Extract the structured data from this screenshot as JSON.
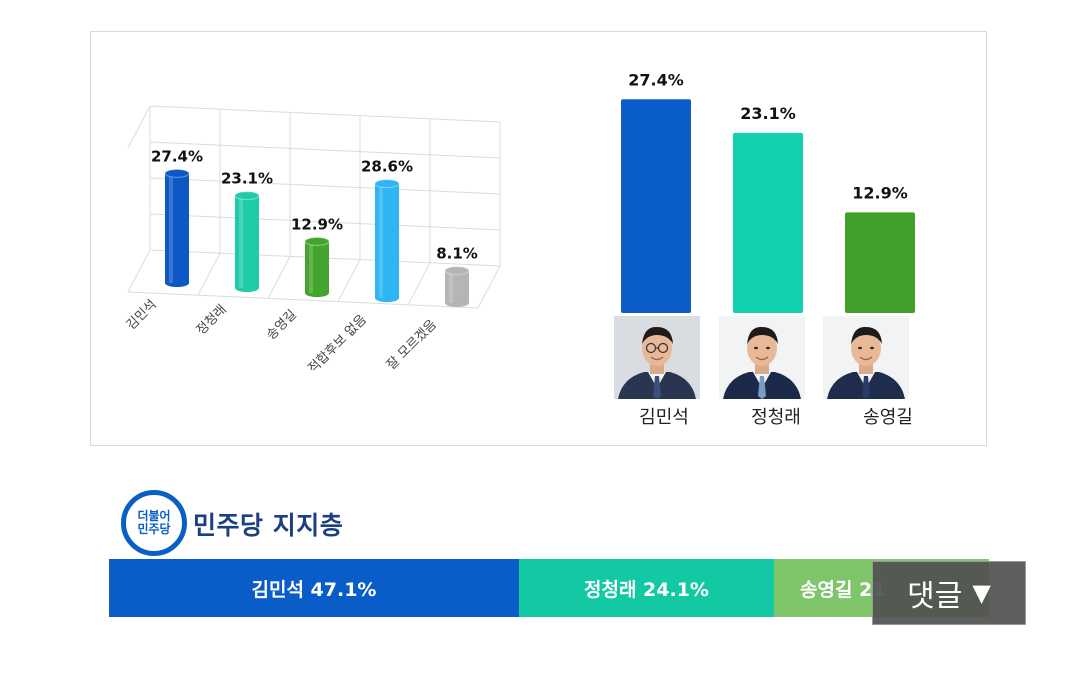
{
  "chart_data": [
    {
      "type": "bar",
      "style": "3d-cylinder",
      "categories": [
        "김민석",
        "정청래",
        "송영길",
        "적합후보 없음",
        "잘 모르겠음"
      ],
      "values": [
        27.4,
        23.1,
        12.9,
        28.6,
        8.1
      ],
      "labels": [
        "27.4%",
        "23.1%",
        "12.9%",
        "28.6%",
        "8.1%"
      ],
      "colors": [
        "#0d57c6",
        "#1fcca8",
        "#43a52d",
        "#2db5f5",
        "#b5b5b5"
      ],
      "grid": true
    },
    {
      "type": "bar",
      "categories": [
        "김민석",
        "정청래",
        "송영길"
      ],
      "values": [
        27.4,
        23.1,
        12.9
      ],
      "labels": [
        "27.4%",
        "23.1%",
        "12.9%"
      ],
      "colors": [
        "#0a5cc9",
        "#12d1ae",
        "#3fa02a"
      ]
    },
    {
      "type": "bar",
      "style": "stacked-horizontal",
      "title": "민주당 지지층",
      "segments": [
        {
          "name": "김민석",
          "value": 47.1,
          "text": "김민석 47.1%",
          "color": "#0a5cc9"
        },
        {
          "name": "정청래",
          "value": 24.1,
          "text": "정청래  24.1%",
          "color": "#12c9a3"
        },
        {
          "name": "송영길",
          "value": 21,
          "text": "송영길  21",
          "color": "#7fc56a"
        }
      ]
    }
  ],
  "party": {
    "logo_line1": "더불어",
    "logo_line2": "민주당",
    "title": "민주당 지지층"
  },
  "candidates": [
    {
      "name": "김민석",
      "suit": "#2a3550",
      "tie": "#3a4f7a"
    },
    {
      "name": "정청래",
      "suit": "#1c2a4a",
      "tie": "#7a9cc0"
    },
    {
      "name": "송영길",
      "suit": "#1f2d4d",
      "tie": "#2a3a66"
    }
  ],
  "overlay": {
    "comment_label": "댓글",
    "comment_icon": "triangle-down-icon"
  }
}
